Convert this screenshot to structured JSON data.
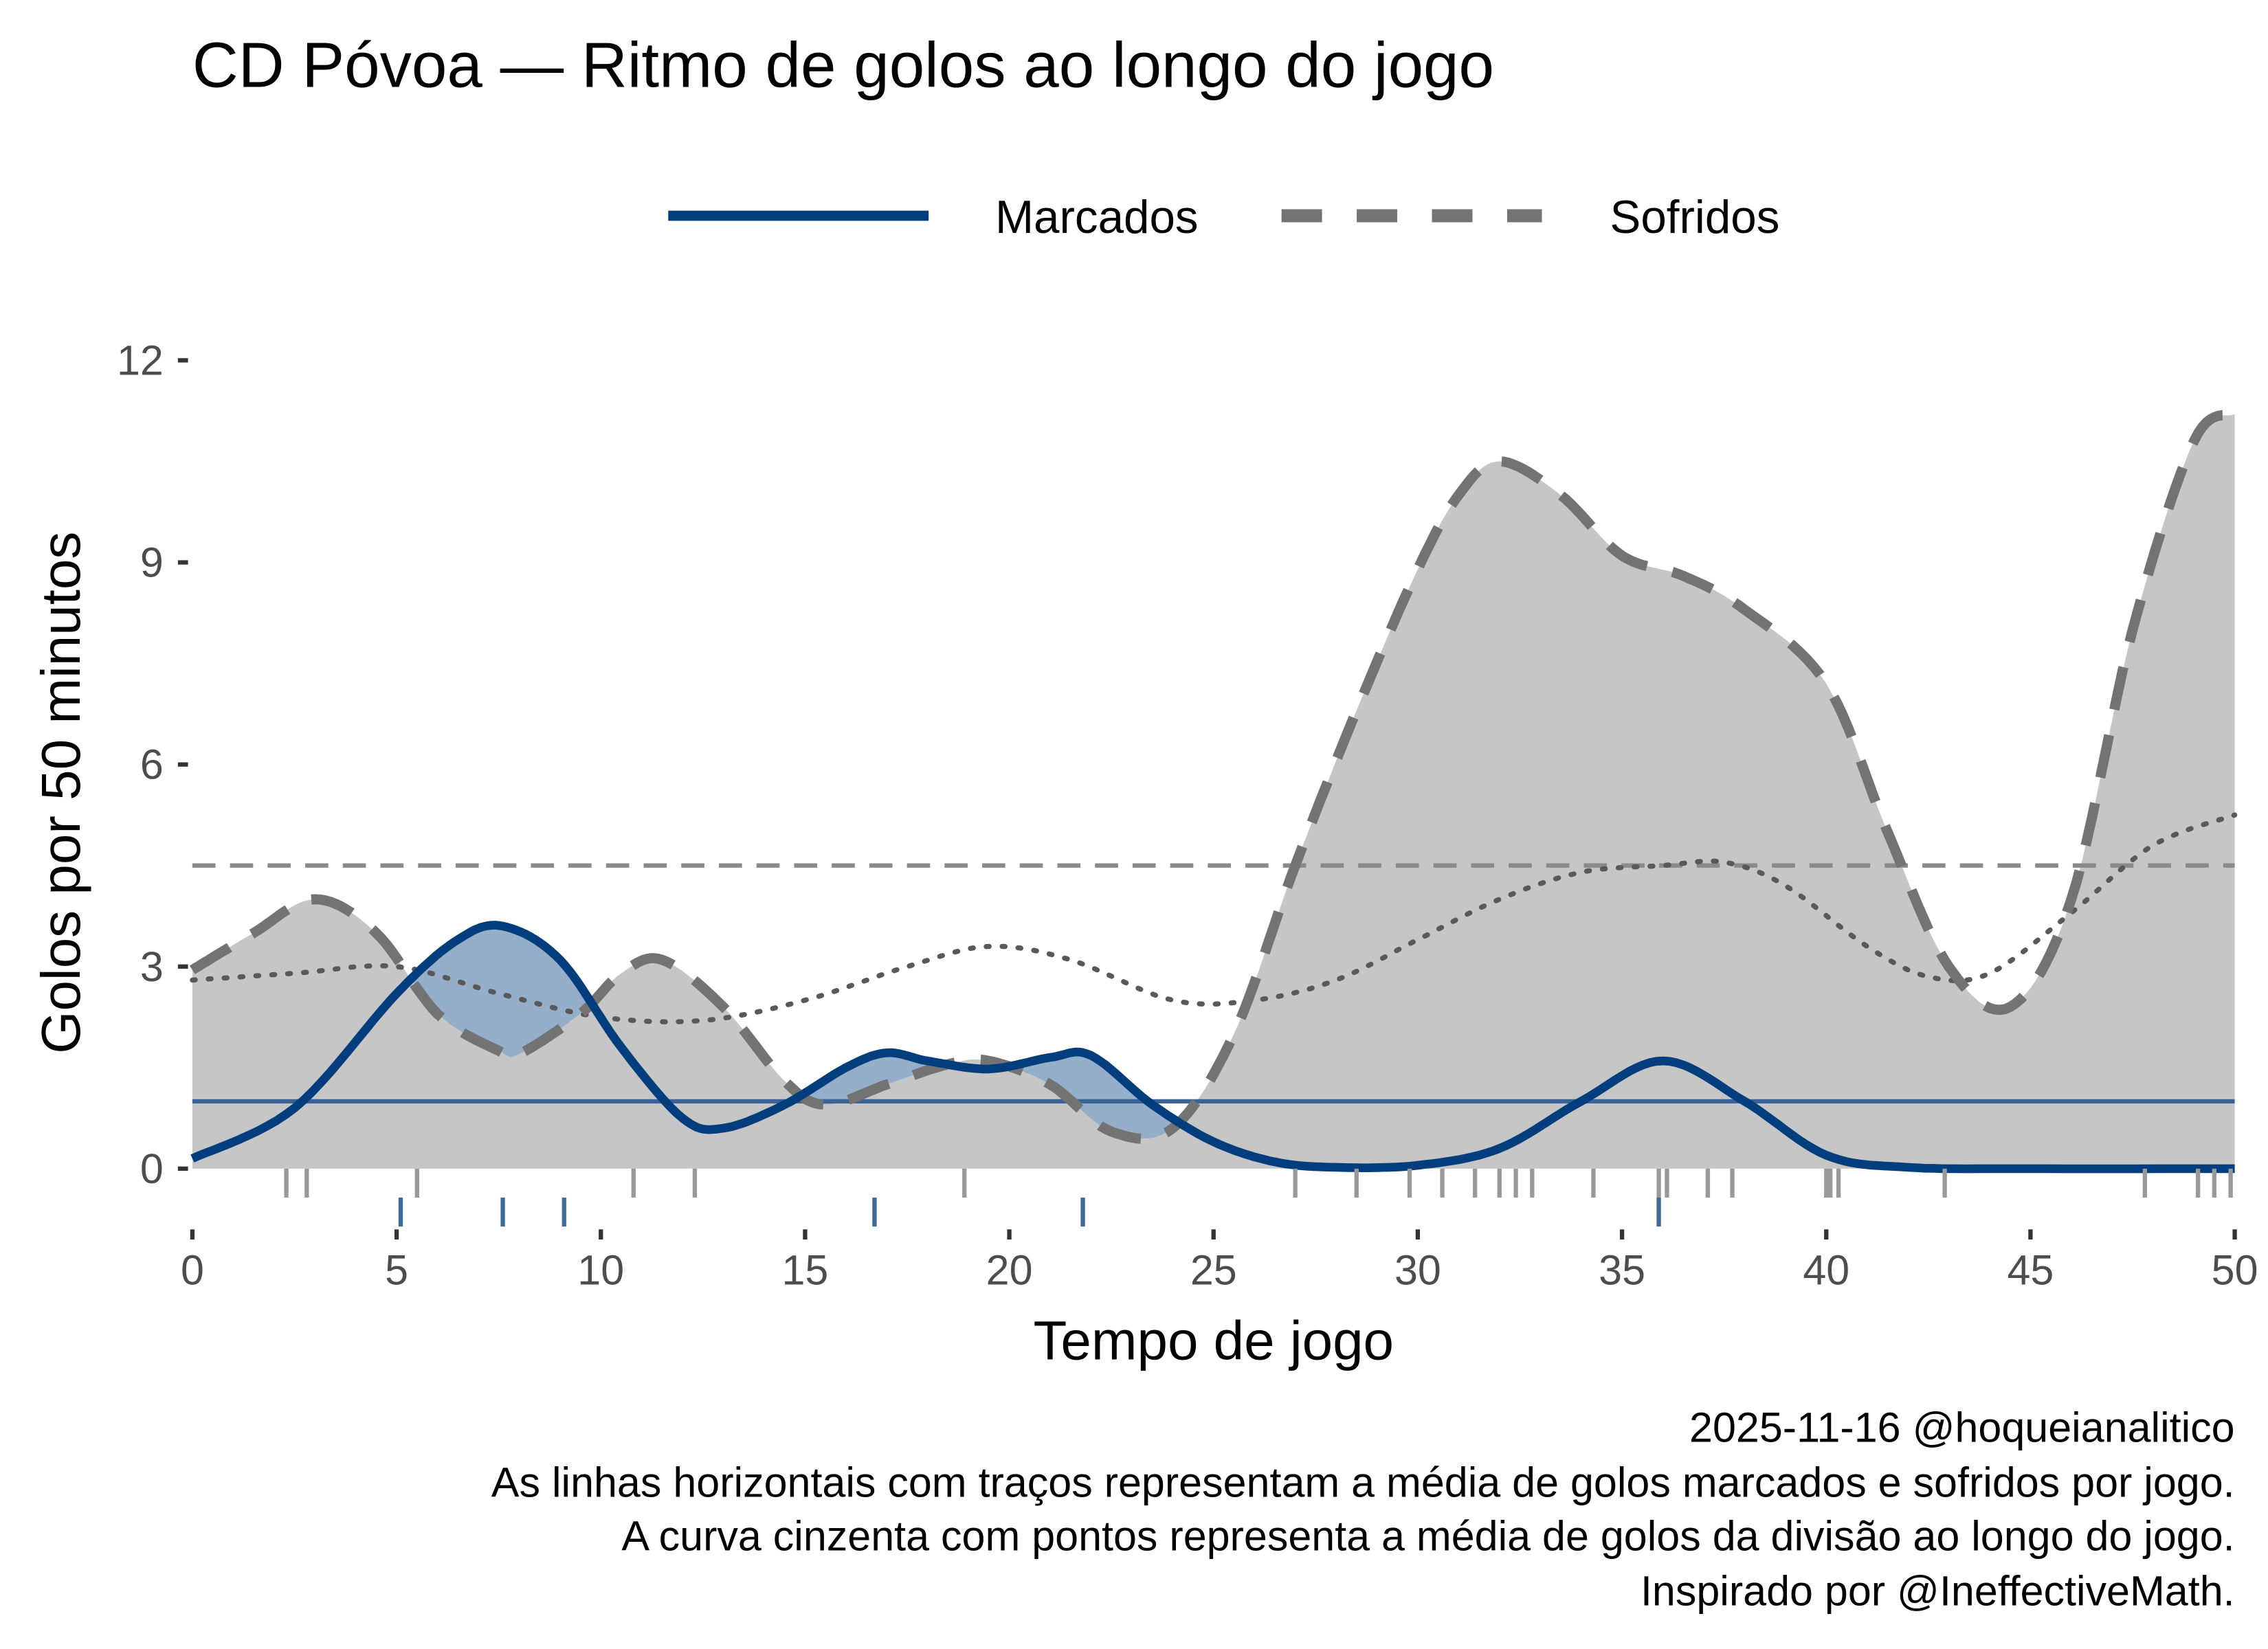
{
  "chart_data": {
    "type": "line",
    "title": "CD Póvoa — Ritmo de golos ao longo do jogo",
    "xlabel": "Tempo de jogo",
    "ylabel": "Golos por 50 minutos",
    "xlim": [
      0,
      50
    ],
    "ylim": [
      0,
      12
    ],
    "x_ticks": [
      0,
      5,
      10,
      15,
      20,
      25,
      30,
      35,
      40,
      45,
      50
    ],
    "y_ticks": [
      0,
      3,
      6,
      9,
      12
    ],
    "grid": false,
    "legend": {
      "placement": "top",
      "entries": [
        {
          "label": "Marcados",
          "style": "solid",
          "color": "#023e7d"
        },
        {
          "label": "Sofridos",
          "style": "dashed",
          "color": "#737373"
        }
      ]
    },
    "series": [
      {
        "name": "Marcados",
        "color": "#023e7d",
        "x": [
          0,
          2.5,
          5,
          6.5,
          7.6,
          9,
          10.5,
          12,
          13,
          14.5,
          16,
          17,
          18,
          19.5,
          21,
          22,
          23.5,
          25,
          26.5,
          28,
          30,
          32,
          34,
          36,
          38,
          40,
          42,
          45,
          50
        ],
        "y": [
          0.15,
          0.9,
          2.6,
          3.4,
          3.6,
          3.1,
          1.8,
          0.75,
          0.6,
          0.95,
          1.5,
          1.72,
          1.6,
          1.48,
          1.65,
          1.68,
          0.95,
          0.4,
          0.1,
          0.02,
          0.05,
          0.3,
          1.0,
          1.6,
          1.0,
          0.2,
          0.02,
          0.0,
          0.0
        ]
      },
      {
        "name": "Sofridos",
        "color": "#737373",
        "x": [
          0,
          1.5,
          3,
          4.5,
          6,
          7.5,
          8,
          9.5,
          10.5,
          11.5,
          13,
          14.5,
          15.5,
          17,
          18.5,
          19.5,
          21,
          22.5,
          24,
          25.5,
          27,
          28.5,
          30,
          31,
          32,
          33.5,
          35,
          36.5,
          38,
          40,
          41.5,
          43,
          44.5,
          46,
          47.5,
          49,
          50
        ],
        "y": [
          2.95,
          3.5,
          4.0,
          3.5,
          2.3,
          1.75,
          1.7,
          2.3,
          2.9,
          3.1,
          2.4,
          1.3,
          0.95,
          1.25,
          1.55,
          1.6,
          1.25,
          0.55,
          0.6,
          2.0,
          4.5,
          6.8,
          8.9,
          10.0,
          10.5,
          10.0,
          9.1,
          8.8,
          8.3,
          7.2,
          5.0,
          3.0,
          2.4,
          4.0,
          8.0,
          10.8,
          11.2
        ]
      },
      {
        "name": "Média da divisão",
        "style": "dotted",
        "color": "#595959",
        "x": [
          0,
          2.5,
          5,
          7.5,
          10,
          12.5,
          15,
          17.5,
          19.5,
          21.5,
          24,
          26,
          28,
          30,
          32,
          34,
          36,
          37.5,
          39,
          41,
          42.5,
          44,
          46,
          48,
          50
        ],
        "y": [
          2.8,
          2.9,
          3.0,
          2.6,
          2.25,
          2.2,
          2.5,
          3.0,
          3.3,
          3.1,
          2.5,
          2.5,
          2.8,
          3.4,
          4.0,
          4.4,
          4.5,
          4.55,
          4.2,
          3.3,
          2.85,
          2.9,
          3.8,
          4.8,
          5.25
        ]
      }
    ],
    "reference_lines": [
      {
        "name": "Média golos marcados por jogo",
        "y": 1.0,
        "style": "solid",
        "color": "#3a6496"
      },
      {
        "name": "Média golos sofridos por jogo",
        "y": 4.5,
        "style": "dashed",
        "color": "#8a8a8a"
      }
    ],
    "rug": {
      "sofridos": [
        2.3,
        2.8,
        5.5,
        10.8,
        12.3,
        18.9,
        27.0,
        28.5,
        29.8,
        30.6,
        31.4,
        32.0,
        32.4,
        32.8,
        34.3,
        35.9,
        36.1,
        37.1,
        37.7,
        40.0,
        40.1,
        40.3,
        42.9,
        47.8,
        49.1,
        49.5,
        49.9
      ],
      "marcados": [
        5.1,
        7.6,
        9.1,
        16.7,
        21.8,
        35.9
      ]
    },
    "caption": [
      "2025-11-16 @hoqueianalitico",
      "As linhas horizontais com traços representam a média de golos marcados e sofridos por jogo.",
      "A curva cinzenta com pontos representa a média de golos da divisão ao longo do jogo.",
      "Inspirado por @IneffectiveMath."
    ]
  }
}
